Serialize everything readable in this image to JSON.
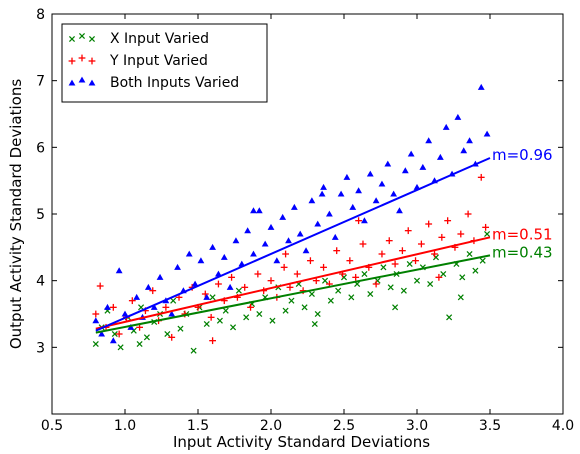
{
  "chart_data": {
    "type": "scatter",
    "xlabel": "Input Activity Standard Deviations",
    "ylabel": "Output Activity Standard Deviations",
    "xlim": [
      0.5,
      4.0
    ],
    "ylim": [
      2.0,
      8.0
    ],
    "xticks": [
      "0.5",
      "1.0",
      "1.5",
      "2.0",
      "2.5",
      "3.0",
      "3.5",
      "4.0"
    ],
    "yticks": [
      "3",
      "4",
      "5",
      "6",
      "7",
      "8"
    ],
    "legend_position": "top-left",
    "grid": false,
    "series": [
      {
        "name": "X Input Varied",
        "marker": "x",
        "color": "#008000",
        "fit": {
          "x": [
            0.8,
            3.5
          ],
          "y": [
            3.22,
            4.38
          ],
          "label": "m=0.43"
        },
        "points": [
          [
            0.8,
            3.05
          ],
          [
            0.84,
            3.3
          ],
          [
            0.88,
            3.55
          ],
          [
            0.93,
            3.2
          ],
          [
            0.97,
            3.0
          ],
          [
            1.02,
            3.45
          ],
          [
            1.06,
            3.25
          ],
          [
            1.11,
            3.6
          ],
          [
            1.15,
            3.15
          ],
          [
            1.2,
            3.38
          ],
          [
            1.24,
            3.5
          ],
          [
            1.29,
            3.2
          ],
          [
            1.33,
            3.7
          ],
          [
            1.38,
            3.28
          ],
          [
            1.42,
            3.5
          ],
          [
            1.47,
            2.95
          ],
          [
            1.51,
            3.6
          ],
          [
            1.56,
            3.35
          ],
          [
            1.6,
            3.75
          ],
          [
            1.65,
            3.4
          ],
          [
            1.69,
            3.55
          ],
          [
            1.74,
            3.3
          ],
          [
            1.78,
            3.85
          ],
          [
            1.83,
            3.45
          ],
          [
            1.87,
            3.65
          ],
          [
            1.92,
            3.5
          ],
          [
            1.96,
            3.75
          ],
          [
            2.01,
            3.4
          ],
          [
            2.05,
            3.9
          ],
          [
            2.1,
            3.55
          ],
          [
            2.14,
            3.7
          ],
          [
            2.19,
            3.95
          ],
          [
            2.23,
            3.6
          ],
          [
            2.28,
            3.8
          ],
          [
            2.32,
            3.5
          ],
          [
            2.37,
            4.0
          ],
          [
            2.41,
            3.7
          ],
          [
            2.46,
            3.85
          ],
          [
            2.5,
            4.05
          ],
          [
            2.55,
            3.75
          ],
          [
            2.59,
            3.95
          ],
          [
            2.64,
            4.1
          ],
          [
            2.68,
            3.8
          ],
          [
            2.73,
            4.0
          ],
          [
            2.77,
            4.2
          ],
          [
            2.82,
            3.9
          ],
          [
            2.86,
            4.1
          ],
          [
            2.91,
            3.85
          ],
          [
            2.95,
            4.25
          ],
          [
            3.0,
            4.0
          ],
          [
            3.04,
            4.2
          ],
          [
            3.09,
            3.95
          ],
          [
            3.13,
            4.35
          ],
          [
            3.18,
            4.1
          ],
          [
            3.22,
            3.45
          ],
          [
            3.27,
            4.25
          ],
          [
            3.31,
            4.05
          ],
          [
            3.36,
            4.4
          ],
          [
            3.4,
            4.15
          ],
          [
            3.45,
            4.3
          ],
          [
            3.48,
            4.7
          ],
          [
            1.1,
            3.05
          ],
          [
            2.3,
            3.35
          ],
          [
            2.85,
            3.6
          ],
          [
            3.3,
            3.75
          ]
        ]
      },
      {
        "name": "Y Input Varied",
        "marker": "+",
        "color": "#ff0000",
        "fit": {
          "x": [
            0.8,
            3.5
          ],
          "y": [
            3.28,
            4.65
          ],
          "label": "m=0.51"
        },
        "points": [
          [
            0.8,
            3.5
          ],
          [
            0.83,
            3.92
          ],
          [
            0.87,
            3.3
          ],
          [
            0.92,
            3.6
          ],
          [
            0.96,
            3.2
          ],
          [
            1.01,
            3.45
          ],
          [
            1.05,
            3.7
          ],
          [
            1.1,
            3.3
          ],
          [
            1.14,
            3.55
          ],
          [
            1.19,
            3.85
          ],
          [
            1.23,
            3.4
          ],
          [
            1.28,
            3.6
          ],
          [
            1.32,
            3.15
          ],
          [
            1.37,
            3.75
          ],
          [
            1.41,
            3.5
          ],
          [
            1.46,
            3.9
          ],
          [
            1.5,
            3.6
          ],
          [
            1.55,
            3.8
          ],
          [
            1.59,
            3.45
          ],
          [
            1.64,
            3.95
          ],
          [
            1.68,
            3.7
          ],
          [
            1.73,
            4.05
          ],
          [
            1.77,
            3.75
          ],
          [
            1.82,
            3.9
          ],
          [
            1.86,
            3.6
          ],
          [
            1.91,
            4.1
          ],
          [
            1.95,
            3.85
          ],
          [
            2.0,
            4.0
          ],
          [
            2.04,
            3.75
          ],
          [
            2.09,
            4.2
          ],
          [
            2.13,
            3.9
          ],
          [
            2.18,
            4.1
          ],
          [
            2.22,
            3.85
          ],
          [
            2.27,
            4.3
          ],
          [
            2.31,
            4.0
          ],
          [
            2.36,
            4.2
          ],
          [
            2.4,
            3.95
          ],
          [
            2.45,
            4.45
          ],
          [
            2.49,
            4.1
          ],
          [
            2.54,
            4.3
          ],
          [
            2.58,
            4.05
          ],
          [
            2.63,
            4.55
          ],
          [
            2.67,
            4.2
          ],
          [
            2.72,
            3.95
          ],
          [
            2.76,
            4.4
          ],
          [
            2.81,
            4.6
          ],
          [
            2.85,
            4.25
          ],
          [
            2.9,
            4.45
          ],
          [
            2.94,
            4.75
          ],
          [
            2.99,
            4.3
          ],
          [
            3.03,
            4.55
          ],
          [
            3.08,
            4.85
          ],
          [
            3.12,
            4.4
          ],
          [
            3.17,
            4.65
          ],
          [
            3.21,
            4.9
          ],
          [
            3.26,
            4.5
          ],
          [
            3.3,
            4.7
          ],
          [
            3.35,
            5.0
          ],
          [
            3.39,
            4.6
          ],
          [
            3.44,
            5.55
          ],
          [
            3.47,
            4.8
          ],
          [
            2.6,
            4.9
          ],
          [
            2.1,
            4.4
          ],
          [
            1.6,
            3.1
          ],
          [
            3.15,
            4.05
          ]
        ]
      },
      {
        "name": "Both Inputs Varied",
        "marker": "triangle",
        "color": "#0000ff",
        "fit": {
          "x": [
            0.8,
            3.5
          ],
          "y": [
            3.25,
            5.84
          ],
          "label": "m=0.96"
        },
        "points": [
          [
            0.8,
            3.4
          ],
          [
            0.84,
            3.2
          ],
          [
            0.88,
            3.6
          ],
          [
            0.92,
            3.1
          ],
          [
            0.96,
            4.15
          ],
          [
            1.0,
            3.5
          ],
          [
            1.04,
            3.3
          ],
          [
            1.08,
            3.75
          ],
          [
            1.12,
            3.45
          ],
          [
            1.16,
            3.9
          ],
          [
            1.2,
            3.6
          ],
          [
            1.24,
            4.05
          ],
          [
            1.28,
            3.7
          ],
          [
            1.32,
            3.5
          ],
          [
            1.36,
            4.2
          ],
          [
            1.4,
            3.85
          ],
          [
            1.44,
            4.4
          ],
          [
            1.48,
            3.95
          ],
          [
            1.52,
            4.3
          ],
          [
            1.56,
            3.75
          ],
          [
            1.6,
            4.5
          ],
          [
            1.64,
            4.1
          ],
          [
            1.68,
            4.35
          ],
          [
            1.72,
            3.9
          ],
          [
            1.76,
            4.6
          ],
          [
            1.8,
            4.25
          ],
          [
            1.84,
            4.75
          ],
          [
            1.88,
            4.4
          ],
          [
            1.92,
            5.05
          ],
          [
            1.96,
            4.55
          ],
          [
            2.0,
            4.8
          ],
          [
            2.04,
            4.3
          ],
          [
            2.08,
            4.95
          ],
          [
            2.12,
            4.6
          ],
          [
            2.16,
            5.1
          ],
          [
            2.2,
            4.7
          ],
          [
            2.24,
            4.45
          ],
          [
            2.28,
            5.2
          ],
          [
            2.32,
            4.85
          ],
          [
            2.36,
            5.4
          ],
          [
            2.4,
            5.0
          ],
          [
            2.44,
            4.65
          ],
          [
            2.48,
            5.3
          ],
          [
            2.52,
            5.55
          ],
          [
            2.56,
            5.1
          ],
          [
            2.6,
            5.35
          ],
          [
            2.64,
            4.9
          ],
          [
            2.68,
            5.6
          ],
          [
            2.72,
            5.2
          ],
          [
            2.76,
            5.45
          ],
          [
            2.8,
            5.75
          ],
          [
            2.84,
            5.3
          ],
          [
            2.88,
            5.05
          ],
          [
            2.92,
            5.65
          ],
          [
            2.96,
            5.9
          ],
          [
            3.0,
            5.4
          ],
          [
            3.04,
            5.7
          ],
          [
            3.08,
            6.1
          ],
          [
            3.12,
            5.5
          ],
          [
            3.16,
            5.85
          ],
          [
            3.2,
            6.3
          ],
          [
            3.24,
            5.6
          ],
          [
            3.28,
            6.45
          ],
          [
            3.32,
            5.95
          ],
          [
            3.36,
            6.1
          ],
          [
            3.4,
            5.75
          ],
          [
            3.44,
            6.9
          ],
          [
            3.48,
            6.2
          ],
          [
            1.88,
            5.05
          ],
          [
            2.35,
            5.3
          ]
        ]
      }
    ]
  }
}
